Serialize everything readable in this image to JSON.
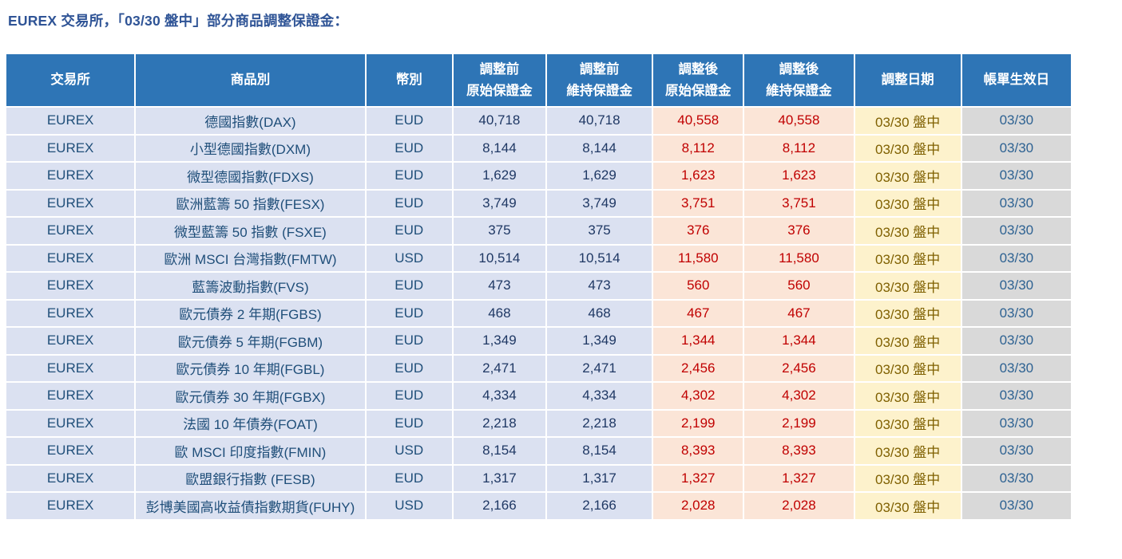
{
  "title": "EUREX 交易所，「03/30 盤中」部分商品調整保證金：",
  "colors": {
    "title_text": "#2F5496",
    "header_bg": "#2E75B6",
    "header_text": "#FFFFFF",
    "body_bg": "#DBE1F1",
    "body_text": "#1F4E79",
    "body_number_text": "#1F3864",
    "adjusted_bg": "#FBE5D7",
    "adjusted_text": "#C00000",
    "adjust_date_bg": "#FDF2CC",
    "adjust_date_text": "#7F6000",
    "effective_date_bg": "#D9D9D9",
    "effective_date_text": "#2E6292"
  },
  "table": {
    "columns": [
      {
        "key": "exchange",
        "label": "交易所"
      },
      {
        "key": "product",
        "label": "商品別"
      },
      {
        "key": "currency",
        "label": "幣別"
      },
      {
        "key": "pre-initial-margin",
        "label": "調整前",
        "label2": "原始保證金"
      },
      {
        "key": "pre-maintenance-margin",
        "label": "調整前",
        "label2": "維持保證金"
      },
      {
        "key": "post-initial-margin",
        "label": "調整後",
        "label2": "原始保證金"
      },
      {
        "key": "post-maintenance-margin",
        "label": "調整後",
        "label2": "維持保證金"
      },
      {
        "key": "adjust-date",
        "label": "調整日期"
      },
      {
        "key": "effective-date",
        "label": "帳單生效日"
      }
    ],
    "rows": [
      [
        "EUREX",
        "德國指數(DAX)",
        "EUD",
        "40,718",
        "40,718",
        "40,558",
        "40,558",
        "03/30 盤中",
        "03/30"
      ],
      [
        "EUREX",
        "小型德國指數(DXM)",
        "EUD",
        "8,144",
        "8,144",
        "8,112",
        "8,112",
        "03/30 盤中",
        "03/30"
      ],
      [
        "EUREX",
        "微型德國指數(FDXS)",
        "EUD",
        "1,629",
        "1,629",
        "1,623",
        "1,623",
        "03/30 盤中",
        "03/30"
      ],
      [
        "EUREX",
        "歐洲藍籌 50 指數(FESX)",
        "EUD",
        "3,749",
        "3,749",
        "3,751",
        "3,751",
        "03/30 盤中",
        "03/30"
      ],
      [
        "EUREX",
        "微型藍籌 50 指數 (FSXE)",
        "EUD",
        "375",
        "375",
        "376",
        "376",
        "03/30 盤中",
        "03/30"
      ],
      [
        "EUREX",
        "歐洲 MSCI 台灣指數(FMTW)",
        "USD",
        "10,514",
        "10,514",
        "11,580",
        "11,580",
        "03/30 盤中",
        "03/30"
      ],
      [
        "EUREX",
        "藍籌波動指數(FVS)",
        "EUD",
        "473",
        "473",
        "560",
        "560",
        "03/30 盤中",
        "03/30"
      ],
      [
        "EUREX",
        "歐元債券 2 年期(FGBS)",
        "EUD",
        "468",
        "468",
        "467",
        "467",
        "03/30 盤中",
        "03/30"
      ],
      [
        "EUREX",
        "歐元債券 5 年期(FGBM)",
        "EUD",
        "1,349",
        "1,349",
        "1,344",
        "1,344",
        "03/30 盤中",
        "03/30"
      ],
      [
        "EUREX",
        "歐元債券 10 年期(FGBL)",
        "EUD",
        "2,471",
        "2,471",
        "2,456",
        "2,456",
        "03/30 盤中",
        "03/30"
      ],
      [
        "EUREX",
        "歐元債券 30 年期(FGBX)",
        "EUD",
        "4,334",
        "4,334",
        "4,302",
        "4,302",
        "03/30 盤中",
        "03/30"
      ],
      [
        "EUREX",
        "法國 10 年債券(FOAT)",
        "EUD",
        "2,218",
        "2,218",
        "2,199",
        "2,199",
        "03/30 盤中",
        "03/30"
      ],
      [
        "EUREX",
        "歐 MSCI 印度指數(FMIN)",
        "USD",
        "8,154",
        "8,154",
        "8,393",
        "8,393",
        "03/30 盤中",
        "03/30"
      ],
      [
        "EUREX",
        "歐盟銀行指數 (FESB)",
        "EUD",
        "1,317",
        "1,317",
        "1,327",
        "1,327",
        "03/30 盤中",
        "03/30"
      ],
      [
        "EUREX",
        "彭博美國高收益債指數期貨(FUHY)",
        "USD",
        "2,166",
        "2,166",
        "2,028",
        "2,028",
        "03/30 盤中",
        "03/30"
      ]
    ]
  }
}
